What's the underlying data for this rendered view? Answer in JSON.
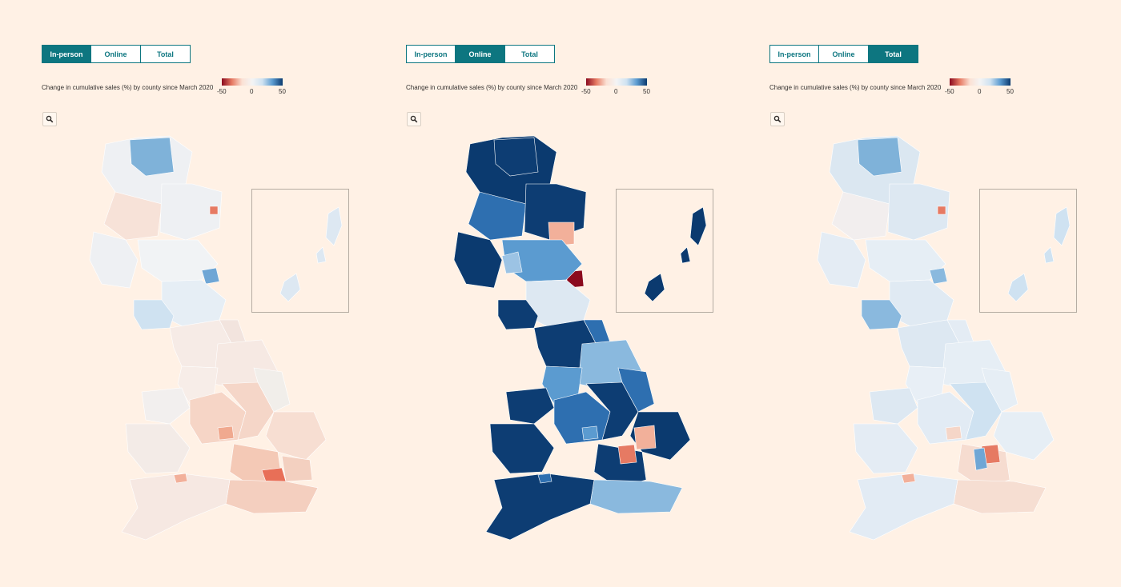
{
  "panels": [
    {
      "tabs": [
        "In-person",
        "Online",
        "Total"
      ],
      "active_tab": 0,
      "legend": {
        "title": "Change in cumulative sales (%) by county since March 2020",
        "min": "-50",
        "mid": "0",
        "max": "50"
      },
      "zoom_icon": "magnifier-icon"
    },
    {
      "tabs": [
        "In-person",
        "Online",
        "Total"
      ],
      "active_tab": 1,
      "legend": {
        "title": "Change in cumulative sales (%) by county since March 2020",
        "min": "-50",
        "mid": "0",
        "max": "50"
      },
      "zoom_icon": "magnifier-icon"
    },
    {
      "tabs": [
        "In-person",
        "Online",
        "Total"
      ],
      "active_tab": 2,
      "legend": {
        "title": "Change in cumulative sales (%) by county since March 2020",
        "min": "-50",
        "mid": "0",
        "max": "50"
      },
      "zoom_icon": "magnifier-icon"
    }
  ],
  "colors": {
    "accent": "#0d7680",
    "background": "#fff1e5",
    "scale": [
      "#8b0a1e",
      "#e67a63",
      "#fbe1d4",
      "#f4f4f4",
      "#cfe2f1",
      "#5b9bd0",
      "#0b3a6f"
    ]
  }
}
